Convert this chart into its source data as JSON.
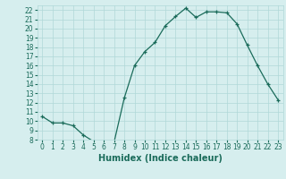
{
  "x": [
    0,
    1,
    2,
    3,
    4,
    5,
    6,
    7,
    8,
    9,
    10,
    11,
    12,
    13,
    14,
    15,
    16,
    17,
    18,
    19,
    20,
    21,
    22,
    23
  ],
  "y": [
    10.5,
    9.8,
    9.8,
    9.5,
    8.5,
    7.8,
    7.7,
    7.7,
    12.5,
    16.0,
    17.5,
    18.5,
    20.3,
    21.3,
    22.2,
    21.2,
    21.8,
    21.8,
    21.7,
    20.5,
    18.2,
    16.0,
    14.0,
    12.3
  ],
  "line_color": "#1a6b5a",
  "marker": "+",
  "bg_color": "#d6eeee",
  "grid_color": "#b0d8d8",
  "xlabel": "Humidex (Indice chaleur)",
  "ylim": [
    8,
    22.5
  ],
  "xlim": [
    -0.5,
    23.5
  ],
  "yticks": [
    8,
    9,
    10,
    11,
    12,
    13,
    14,
    15,
    16,
    17,
    18,
    19,
    20,
    21,
    22
  ],
  "xticks": [
    0,
    1,
    2,
    3,
    4,
    5,
    6,
    7,
    8,
    9,
    10,
    11,
    12,
    13,
    14,
    15,
    16,
    17,
    18,
    19,
    20,
    21,
    22,
    23
  ],
  "tick_label_fontsize": 5.5,
  "xlabel_fontsize": 7,
  "axis_label_color": "#1a6b5a"
}
